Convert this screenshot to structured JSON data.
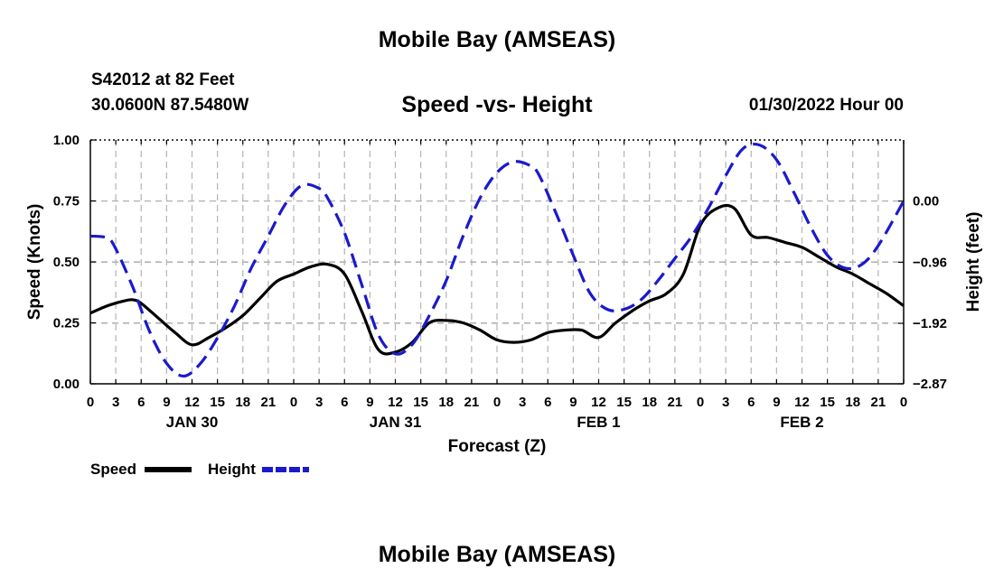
{
  "header": {
    "title": "Mobile Bay (AMSEAS)",
    "station": "S42012 at 82 Feet",
    "coords": "30.0600N  87.5480W",
    "subtitle": "Speed -vs- Height",
    "datetime": "01/30/2022 Hour 00"
  },
  "footer": {
    "title": "Mobile Bay (AMSEAS)"
  },
  "colors": {
    "speed": "#000000",
    "height": "#1a1acc",
    "grid": "#b4b4b4"
  },
  "chart_data": {
    "type": "line",
    "xlabel": "Forecast (Z)",
    "ylabel": "Speed (Knots)",
    "ylabel_right": "Height (feet)",
    "grid": true,
    "x_unit": "hours",
    "xlim": [
      0,
      96
    ],
    "x_tick_labels": [
      "0",
      "3",
      "6",
      "9",
      "12",
      "15",
      "18",
      "21",
      "0",
      "3",
      "6",
      "9",
      "12",
      "15",
      "18",
      "21",
      "0",
      "3",
      "6",
      "9",
      "12",
      "15",
      "18",
      "21",
      "0",
      "3",
      "6",
      "9",
      "12",
      "15",
      "18",
      "21",
      "0"
    ],
    "day_labels": [
      {
        "label": "JAN 30",
        "at": 12
      },
      {
        "label": "JAN 31",
        "at": 36
      },
      {
        "label": "FEB 1",
        "at": 60
      },
      {
        "label": "FEB 2",
        "at": 84
      }
    ],
    "y_left": {
      "lim": [
        0,
        1.0
      ],
      "ticks": [
        0,
        0.25,
        0.5,
        0.75,
        1.0
      ],
      "tick_labels": [
        "0.00",
        "0.25",
        "0.50",
        "0.75",
        "1.00"
      ]
    },
    "y_right": {
      "lim": [
        -2.87,
        0.96
      ],
      "ticks": [
        -2.87,
        -1.92,
        -0.96,
        0.0
      ],
      "tick_labels": [
        "−2.87",
        "−1.92",
        "−0.96",
        "0.00"
      ]
    },
    "legend": [
      {
        "name": "Speed",
        "style": "solid"
      },
      {
        "name": "Height",
        "style": "dashed"
      }
    ],
    "series": [
      {
        "name": "Speed",
        "axis": "left",
        "x": [
          0,
          2,
          4,
          5,
          6,
          8,
          10,
          12,
          14,
          16,
          18,
          20,
          22,
          24,
          26,
          28,
          30,
          32,
          34,
          36,
          38,
          40,
          42,
          44,
          46,
          48,
          50,
          52,
          54,
          56,
          58,
          60,
          62,
          64,
          66,
          68,
          70,
          72,
          74,
          76,
          78,
          80,
          82,
          84,
          86,
          88,
          90,
          92,
          94,
          96
        ],
        "values": [
          0.29,
          0.32,
          0.34,
          0.345,
          0.33,
          0.27,
          0.21,
          0.16,
          0.19,
          0.23,
          0.28,
          0.35,
          0.42,
          0.45,
          0.48,
          0.49,
          0.45,
          0.3,
          0.14,
          0.13,
          0.17,
          0.25,
          0.26,
          0.25,
          0.22,
          0.18,
          0.17,
          0.18,
          0.21,
          0.22,
          0.22,
          0.19,
          0.25,
          0.3,
          0.34,
          0.37,
          0.45,
          0.65,
          0.72,
          0.72,
          0.61,
          0.6,
          0.58,
          0.56,
          0.52,
          0.48,
          0.45,
          0.41,
          0.37,
          0.32
        ]
      },
      {
        "name": "Height",
        "axis": "right",
        "x": [
          0,
          2,
          3,
          5,
          7,
          9,
          11,
          13,
          15,
          17,
          19,
          21,
          23,
          25,
          27,
          28,
          30,
          32,
          34,
          36,
          38,
          40,
          42,
          44,
          46,
          48,
          50,
          52,
          53,
          55,
          57,
          59,
          61,
          63,
          65,
          67,
          69,
          71,
          73,
          75,
          77,
          79,
          81,
          83,
          85,
          87,
          89,
          91,
          93,
          96
        ],
        "values": [
          -0.55,
          -0.58,
          -0.75,
          -1.35,
          -2.05,
          -2.55,
          -2.75,
          -2.55,
          -2.15,
          -1.65,
          -1.05,
          -0.55,
          -0.05,
          0.25,
          0.2,
          0.05,
          -0.5,
          -1.3,
          -2.1,
          -2.4,
          -2.25,
          -1.8,
          -1.25,
          -0.55,
          0.05,
          0.45,
          0.62,
          0.55,
          0.4,
          -0.2,
          -0.85,
          -1.45,
          -1.7,
          -1.7,
          -1.55,
          -1.25,
          -0.9,
          -0.55,
          -0.1,
          0.4,
          0.82,
          0.88,
          0.65,
          0.15,
          -0.4,
          -0.85,
          -1.05,
          -1.0,
          -0.7,
          0.0
        ]
      }
    ]
  }
}
